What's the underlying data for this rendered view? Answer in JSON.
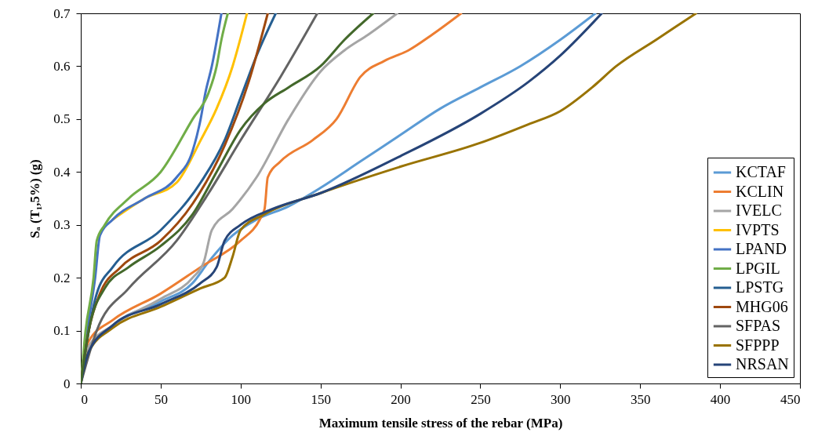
{
  "chart_data": {
    "type": "line",
    "xlabel": "Maximum tensile stress of the rebar (MPa)",
    "ylabel": "Sₐ (T₁,5%) (g)",
    "xlim": [
      0,
      450
    ],
    "xticks": [
      0,
      50,
      100,
      150,
      200,
      250,
      300,
      350,
      400,
      450
    ],
    "ylim": [
      0,
      0.7
    ],
    "yticks": [
      0,
      0.1,
      0.2,
      0.3,
      0.4,
      0.5,
      0.6,
      0.7
    ],
    "legend": "bottom right",
    "series": [
      {
        "name": "KCTAF",
        "color": "#5b9bd5",
        "x": [
          0,
          5,
          20,
          50,
          70,
          80,
          95,
          110,
          130,
          150,
          175,
          200,
          225,
          250,
          275,
          300,
          322
        ],
        "values": [
          0,
          0.06,
          0.11,
          0.155,
          0.19,
          0.23,
          0.28,
          0.31,
          0.335,
          0.37,
          0.42,
          0.47,
          0.52,
          0.56,
          0.6,
          0.65,
          0.7
        ]
      },
      {
        "name": "KCLIN",
        "color": "#ed7d31",
        "x": [
          0,
          5,
          20,
          50,
          75,
          100,
          112,
          115,
          117,
          125,
          145,
          160,
          175,
          190,
          205,
          220,
          238
        ],
        "values": [
          0,
          0.08,
          0.12,
          0.17,
          0.22,
          0.27,
          0.31,
          0.33,
          0.39,
          0.42,
          0.46,
          0.5,
          0.58,
          0.61,
          0.63,
          0.66,
          0.7
        ]
      },
      {
        "name": "IVELC",
        "color": "#a5a5a5",
        "x": [
          0,
          5,
          20,
          50,
          70,
          77,
          82,
          95,
          110,
          130,
          150,
          165,
          180,
          198
        ],
        "values": [
          0,
          0.07,
          0.11,
          0.16,
          0.2,
          0.23,
          0.29,
          0.33,
          0.39,
          0.5,
          0.59,
          0.63,
          0.66,
          0.7
        ]
      },
      {
        "name": "IVPTS",
        "color": "#ffc000",
        "x": [
          20,
          40,
          60,
          75,
          85,
          95,
          104
        ],
        "values": [
          0.31,
          0.35,
          0.38,
          0.46,
          0.52,
          0.6,
          0.7
        ]
      },
      {
        "name": "LPAND",
        "color": "#4472c4",
        "x": [
          0,
          4,
          9,
          12,
          20,
          40,
          60,
          70,
          75,
          78,
          82,
          88
        ],
        "values": [
          0,
          0.1,
          0.2,
          0.28,
          0.31,
          0.35,
          0.39,
          0.44,
          0.5,
          0.55,
          0.6,
          0.7
        ]
      },
      {
        "name": "LPGIL",
        "color": "#70ad47",
        "x": [
          0,
          3,
          8,
          10,
          15,
          30,
          50,
          70,
          80,
          85,
          88,
          92
        ],
        "values": [
          0,
          0.1,
          0.2,
          0.27,
          0.3,
          0.35,
          0.4,
          0.5,
          0.55,
          0.6,
          0.65,
          0.7
        ]
      },
      {
        "name": "LPSTG",
        "color": "#255e91",
        "x": [
          0,
          5,
          10,
          20,
          50,
          75,
          90,
          100,
          110,
          122
        ],
        "values": [
          0,
          0.1,
          0.17,
          0.22,
          0.29,
          0.38,
          0.46,
          0.54,
          0.62,
          0.7
        ]
      },
      {
        "name": "MHG06",
        "color": "#9e480e",
        "x": [
          0,
          5,
          12,
          25,
          50,
          70,
          90,
          105,
          117
        ],
        "values": [
          0,
          0.1,
          0.17,
          0.22,
          0.27,
          0.34,
          0.45,
          0.57,
          0.7
        ]
      },
      {
        "name": "SFPAS",
        "color": "#636363",
        "x": [
          0,
          10,
          30,
          60,
          80,
          100,
          125,
          148
        ],
        "values": [
          0,
          0.1,
          0.18,
          0.27,
          0.36,
          0.46,
          0.58,
          0.7
        ]
      },
      {
        "name": "SFPPP",
        "color": "#997300",
        "x": [
          0,
          5,
          20,
          50,
          75,
          90,
          95,
          100,
          115,
          150,
          200,
          250,
          280,
          300,
          320,
          335,
          360,
          385
        ],
        "values": [
          0,
          0.06,
          0.105,
          0.145,
          0.18,
          0.2,
          0.24,
          0.29,
          0.32,
          0.36,
          0.41,
          0.455,
          0.49,
          0.515,
          0.56,
          0.6,
          0.65,
          0.7
        ]
      },
      {
        "name": "NRSAN",
        "color": "#264478",
        "x": [
          0,
          5,
          20,
          50,
          75,
          85,
          90,
          100,
          120,
          150,
          200,
          250,
          280,
          300,
          326
        ],
        "values": [
          0,
          0.06,
          0.11,
          0.15,
          0.19,
          0.22,
          0.27,
          0.3,
          0.33,
          0.36,
          0.43,
          0.51,
          0.57,
          0.62,
          0.7
        ]
      },
      {
        "color": "#43682b",
        "x": [
          0,
          5,
          15,
          30,
          50,
          70,
          85,
          100,
          115,
          130,
          150,
          165,
          183
        ],
        "values": [
          0,
          0.1,
          0.18,
          0.22,
          0.26,
          0.32,
          0.4,
          0.48,
          0.53,
          0.56,
          0.6,
          0.65,
          0.7
        ]
      }
    ]
  }
}
